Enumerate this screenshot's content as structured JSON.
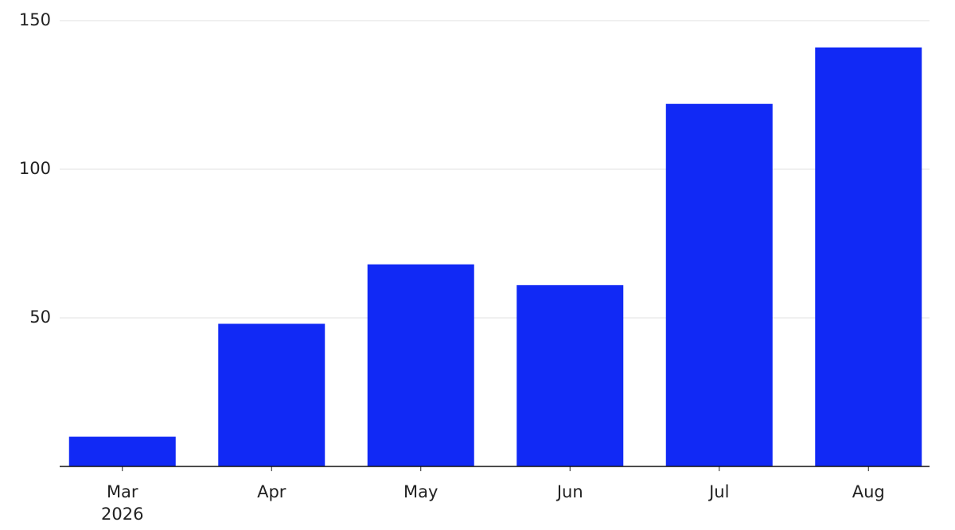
{
  "chart_data": {
    "type": "bar",
    "categories": [
      "Mar 2026",
      "Apr",
      "May",
      "Jun",
      "Jul",
      "Aug"
    ],
    "values": [
      10,
      48,
      68,
      61,
      122,
      141
    ],
    "color": "#1129f5",
    "ylim": [
      0,
      150
    ],
    "yticks": [
      50,
      100,
      150
    ],
    "grid": true
  }
}
